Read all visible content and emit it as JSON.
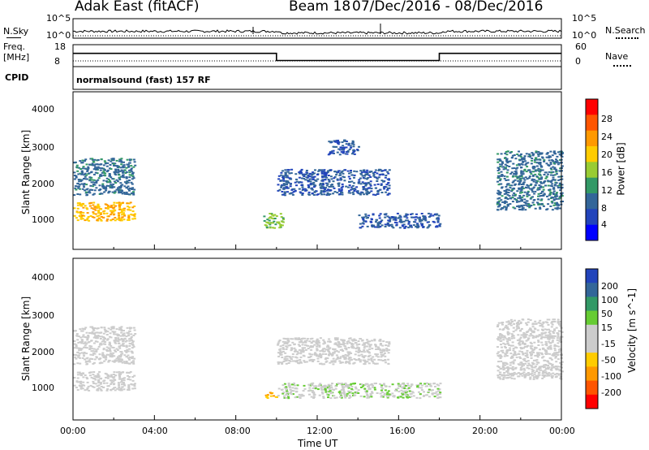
{
  "header": {
    "station": "Adak East (fitACF)",
    "beam": "Beam 18",
    "date_range": "07/Dec/2016 - 08/Dec/2016"
  },
  "summary": {
    "nsky_label": "N.Sky",
    "nsearch_label": "N.Search",
    "noise_ticks": [
      "10^5",
      "10^0"
    ],
    "freq_label_1": "Freq.",
    "freq_label_2": "[MHz]",
    "freq_ticks": [
      "18",
      "8"
    ],
    "nave_label": "Nave",
    "nave_ticks": [
      "60",
      "0"
    ],
    "cpid_label": "CPID",
    "cpid_text": "normalsound (fast) 157 RF"
  },
  "power_panel": {
    "y_label": "Slant Range [km]",
    "y_ticks": [
      "4000",
      "3000",
      "2000",
      "1000"
    ],
    "scale_label": "Power [dB]",
    "scale_ticks": [
      "28",
      "24",
      "20",
      "16",
      "12",
      "8",
      "4"
    ],
    "scale_colors": [
      "#ff0000",
      "#ff5500",
      "#ff9900",
      "#ffcc00",
      "#99cc33",
      "#339966",
      "#336699",
      "#2244bb",
      "#0000ff"
    ]
  },
  "velocity_panel": {
    "y_label": "Slant Range [km]",
    "y_ticks": [
      "4000",
      "3000",
      "2000",
      "1000"
    ],
    "scale_label": "Velocity [m s^-1]",
    "scale_ticks": [
      "200",
      "100",
      "50",
      "15",
      "-15",
      "-50",
      "-100",
      "-200"
    ],
    "scale_colors": [
      "#2244bb",
      "#336699",
      "#339966",
      "#66cc33",
      "#cccccc",
      "#cccccc",
      "#ffcc00",
      "#ff9900",
      "#ff5500",
      "#ff0000"
    ]
  },
  "x_axis": {
    "label": "Time UT",
    "ticks": [
      "00:00",
      "04:00",
      "08:00",
      "12:00",
      "16:00",
      "20:00",
      "00:00"
    ]
  },
  "chart_data": [
    {
      "type": "line",
      "title": "Frequency",
      "x_unit": "hours UT",
      "series": [
        {
          "name": "Freq. [MHz]",
          "x": [
            0,
            10,
            10,
            18,
            18,
            24
          ],
          "y": [
            14.5,
            14.5,
            10.5,
            10.5,
            14.5,
            14.5
          ]
        }
      ],
      "ylim": [
        8,
        18
      ],
      "xlim": [
        0,
        24
      ]
    },
    {
      "type": "heatmap",
      "title": "Power [dB]",
      "xlabel": "Time UT",
      "ylabel": "Slant Range [km]",
      "xlim": [
        0,
        24
      ],
      "ylim": [
        200,
        4500
      ],
      "clim": [
        0,
        30
      ],
      "regions": [
        {
          "t": [
            0.0,
            3.0
          ],
          "r": [
            1000,
            1500
          ],
          "value": 20
        },
        {
          "t": [
            0.0,
            3.0
          ],
          "r": [
            1700,
            2700
          ],
          "value": 8
        },
        {
          "t": [
            9.3,
            10.3
          ],
          "r": [
            800,
            1200
          ],
          "value": 14
        },
        {
          "t": [
            10.0,
            15.5
          ],
          "r": [
            1700,
            2400
          ],
          "value": 6
        },
        {
          "t": [
            12.5,
            14.0
          ],
          "r": [
            2800,
            3200
          ],
          "value": 6
        },
        {
          "t": [
            14.0,
            18.0
          ],
          "r": [
            800,
            1200
          ],
          "value": 6
        },
        {
          "t": [
            20.8,
            24.0
          ],
          "r": [
            1300,
            2900
          ],
          "value": 8
        }
      ]
    },
    {
      "type": "heatmap",
      "title": "Velocity [m s^-1]",
      "xlabel": "Time UT",
      "ylabel": "Slant Range [km]",
      "xlim": [
        0,
        24
      ],
      "ylim": [
        200,
        4500
      ],
      "clim": [
        -200,
        200
      ],
      "regions": [
        {
          "t": [
            0.0,
            3.0
          ],
          "r": [
            1000,
            1500
          ],
          "value": 0
        },
        {
          "t": [
            0.0,
            3.0
          ],
          "r": [
            1700,
            2700
          ],
          "value": 0
        },
        {
          "t": [
            9.4,
            10.0
          ],
          "r": [
            800,
            950
          ],
          "value": -80
        },
        {
          "t": [
            10.0,
            18.0
          ],
          "r": [
            800,
            1200
          ],
          "value": 30
        },
        {
          "t": [
            10.0,
            15.5
          ],
          "r": [
            1700,
            2400
          ],
          "value": 0
        },
        {
          "t": [
            20.8,
            24.0
          ],
          "r": [
            1300,
            2900
          ],
          "value": 0
        }
      ]
    }
  ]
}
